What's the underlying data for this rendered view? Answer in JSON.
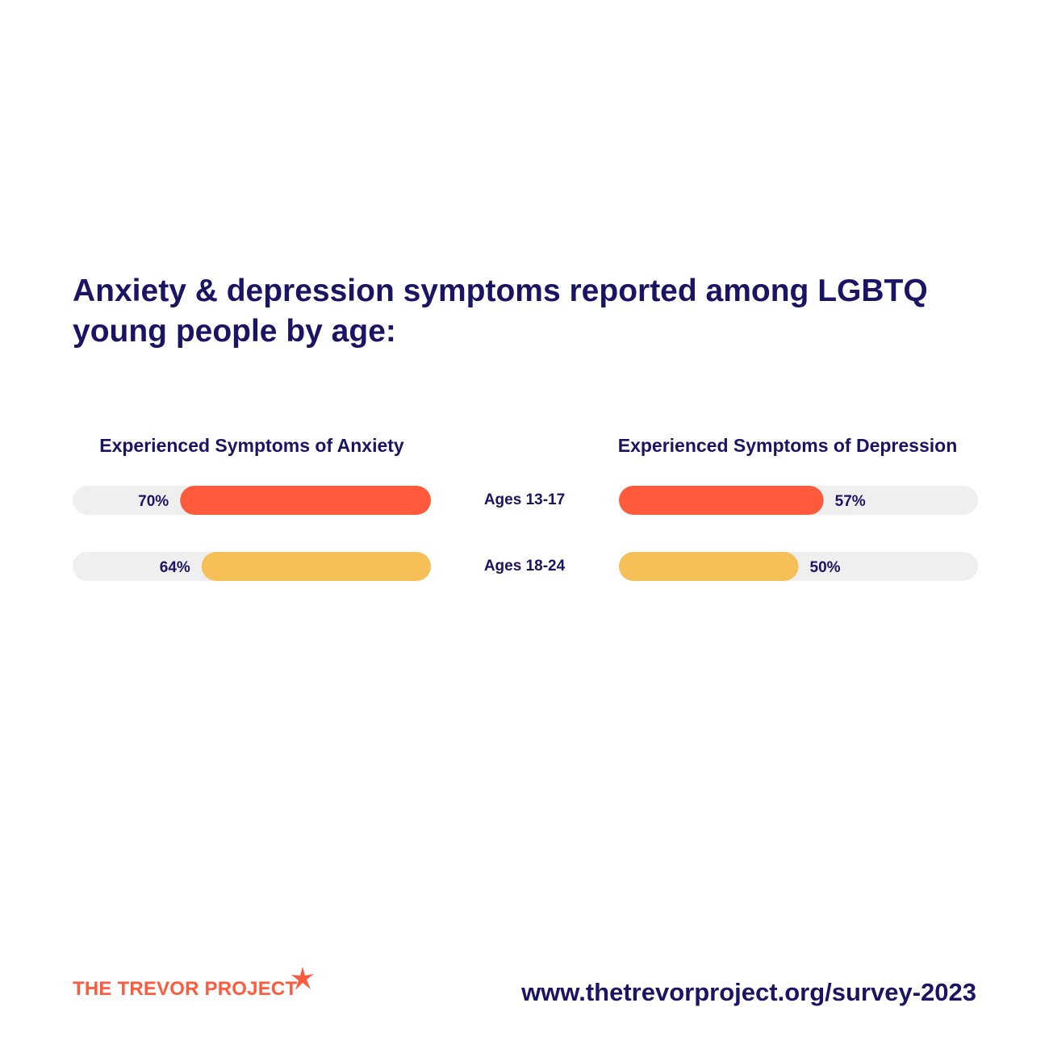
{
  "title": "Anxiety & depression symptoms reported among LGBTQ young people by age:",
  "colors": {
    "text": "#1b1464",
    "track": "#efefef",
    "ages_13_17": "#ff5a3c",
    "ages_18_24": "#f7bf57",
    "brand": "#ff5a3c"
  },
  "chart_data": [
    {
      "type": "bar",
      "orientation": "horizontal",
      "direction": "right-to-left",
      "title": "Experienced Symptoms of Anxiety",
      "categories": [
        "Ages 13-17",
        "Ages 18-24"
      ],
      "values": [
        70,
        64
      ],
      "value_labels": [
        "70%",
        "64%"
      ],
      "unit": "%",
      "xlim": [
        0,
        100
      ]
    },
    {
      "type": "bar",
      "orientation": "horizontal",
      "direction": "left-to-right",
      "title": "Experienced Symptoms of Depression",
      "categories": [
        "Ages 13-17",
        "Ages 18-24"
      ],
      "values": [
        57,
        50
      ],
      "value_labels": [
        "57%",
        "50%"
      ],
      "unit": "%",
      "xlim": [
        0,
        100
      ]
    }
  ],
  "footer": {
    "brand": "THE TREVOR PROJECT",
    "url": "www.thetrevorproject.org/survey-2023",
    "brand_icon": "star-icon"
  }
}
